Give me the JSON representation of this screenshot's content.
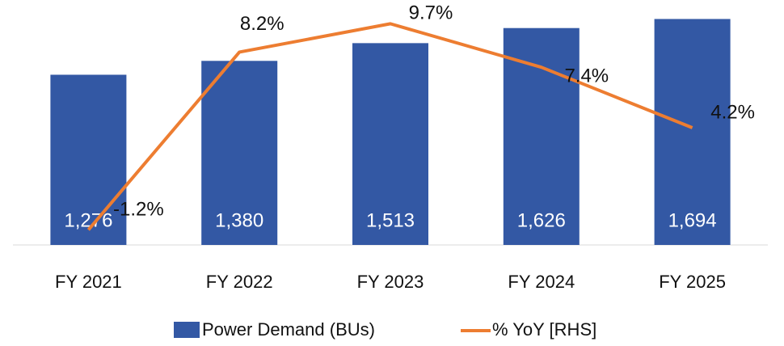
{
  "chart_data": {
    "type": "bar",
    "categories": [
      "FY 2021",
      "FY 2022",
      "FY 2023",
      "FY 2024",
      "FY 2025"
    ],
    "series": [
      {
        "name": "Power Demand (BUs)",
        "type": "bar",
        "color": "#3358a4",
        "values": [
          1276,
          1380,
          1513,
          1626,
          1694
        ],
        "value_labels": [
          "1,276",
          "1,380",
          "1,513",
          "1,626",
          "1,694"
        ]
      },
      {
        "name": "% YoY [RHS]",
        "type": "line",
        "axis": "y2",
        "color": "#ed7d31",
        "values": [
          -1.2,
          8.2,
          9.7,
          7.4,
          4.2
        ],
        "value_labels": [
          "-1.2%",
          "8.2%",
          "9.7%",
          "7.4%",
          "4.2%"
        ]
      }
    ],
    "ylim": [
      0,
      1800
    ],
    "y2lim": [
      -2,
      10.7
    ],
    "legend": "bottom"
  }
}
